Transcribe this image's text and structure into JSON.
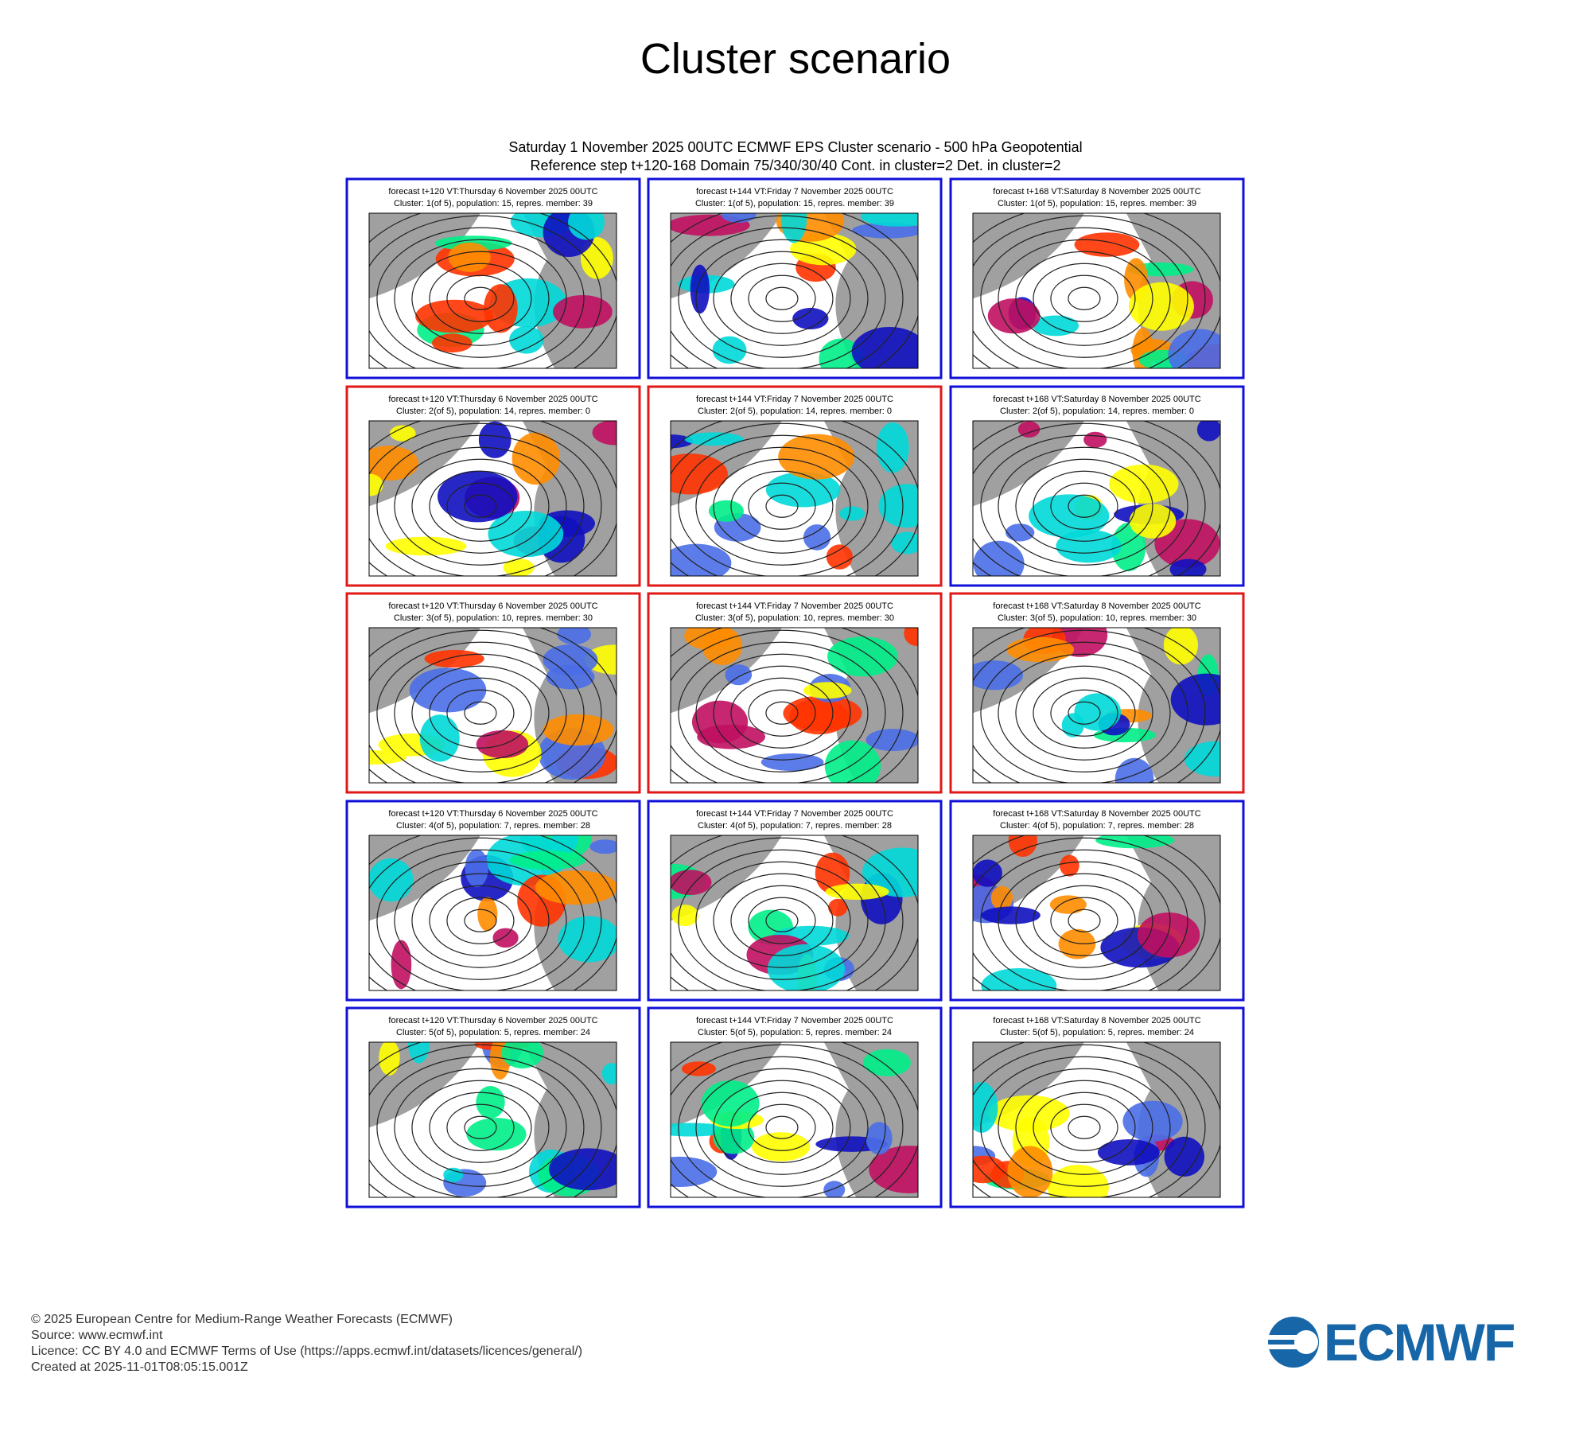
{
  "title": "Cluster scenario",
  "figure": {
    "subtitle_1": "Saturday 1 November 2025 00UTC ECMWF EPS Cluster scenario - 500 hPa Geopotential",
    "subtitle_2": "Reference step t+120-168 Domain 75/340/30/40 Cont. in cluster=2 Det. in cluster=2",
    "panels": [
      {
        "header_1": "forecast t+120 VT:Thursday 6 November 2025 00UTC",
        "header_2": "Cluster: 1(of 5), population: 15, repres. member: 39",
        "frame_color": "#1010d8"
      },
      {
        "header_1": "forecast t+144 VT:Friday 7 November 2025 00UTC",
        "header_2": "Cluster: 1(of 5), population: 15, repres. member: 39",
        "frame_color": "#1010d8"
      },
      {
        "header_1": "forecast t+168 VT:Saturday 8 November 2025 00UTC",
        "header_2": "Cluster: 1(of 5), population: 15, repres. member: 39",
        "frame_color": "#1010d8"
      },
      {
        "header_1": "forecast t+120 VT:Thursday 6 November 2025 00UTC",
        "header_2": "Cluster: 2(of 5), population: 14, repres. member: 0",
        "frame_color": "#e01818"
      },
      {
        "header_1": "forecast t+144 VT:Friday 7 November 2025 00UTC",
        "header_2": "Cluster: 2(of 5), population: 14, repres. member: 0",
        "frame_color": "#e01818"
      },
      {
        "header_1": "forecast t+168 VT:Saturday 8 November 2025 00UTC",
        "header_2": "Cluster: 2(of 5), population: 14, repres. member: 0",
        "frame_color": "#1010d8"
      },
      {
        "header_1": "forecast t+120 VT:Thursday 6 November 2025 00UTC",
        "header_2": "Cluster: 3(of 5), population: 10, repres. member: 30",
        "frame_color": "#e01818"
      },
      {
        "header_1": "forecast t+144 VT:Friday 7 November 2025 00UTC",
        "header_2": "Cluster: 3(of 5), population: 10, repres. member: 30",
        "frame_color": "#e01818"
      },
      {
        "header_1": "forecast t+168 VT:Saturday 8 November 2025 00UTC",
        "header_2": "Cluster: 3(of 5), population: 10, repres. member: 30",
        "frame_color": "#e01818"
      },
      {
        "header_1": "forecast t+120 VT:Thursday 6 November 2025 00UTC",
        "header_2": "Cluster: 4(of 5), population: 7, repres. member: 28",
        "frame_color": "#1010d8"
      },
      {
        "header_1": "forecast t+144 VT:Friday 7 November 2025 00UTC",
        "header_2": "Cluster: 4(of 5), population: 7, repres. member: 28",
        "frame_color": "#1010d8"
      },
      {
        "header_1": "forecast t+168 VT:Saturday 8 November 2025 00UTC",
        "header_2": "Cluster: 4(of 5), population: 7, repres. member: 28",
        "frame_color": "#1010d8"
      },
      {
        "header_1": "forecast t+120 VT:Thursday 6 November 2025 00UTC",
        "header_2": "Cluster: 5(of 5), population: 5, repres. member: 24",
        "frame_color": "#1010d8"
      },
      {
        "header_1": "forecast t+144 VT:Friday 7 November 2025 00UTC",
        "header_2": "Cluster: 5(of 5), population: 5, repres. member: 24",
        "frame_color": "#1010d8"
      },
      {
        "header_1": "forecast t+168 VT:Saturday 8 November 2025 00UTC",
        "header_2": "Cluster: 5(of 5), population: 5, repres. member: 24",
        "frame_color": "#1010d8"
      }
    ]
  },
  "footer": {
    "lines": [
      "© 2025 European Centre for Medium-Range Weather Forecasts (ECMWF)",
      "Source: www.ecmwf.int",
      "Licence: CC BY 4.0 and ECMWF Terms of Use (https://apps.ecmwf.int/datasets/licences/general/)",
      "Created at 2025-11-01T08:05:15.001Z"
    ],
    "logo": "ECMWF"
  }
}
